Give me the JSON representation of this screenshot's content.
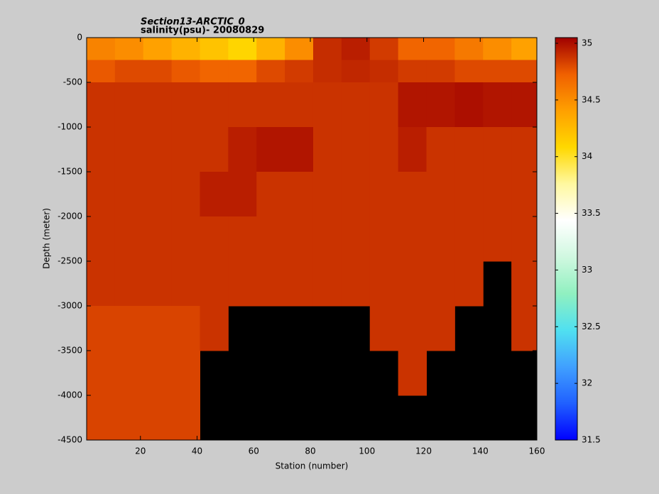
{
  "chart_data": {
    "type": "heatmap",
    "title": "Section13-ARCTIC_0",
    "subtitle": "salinity(psu)- 20080829",
    "x_label": "Station (number)",
    "y_label": "Depth (meter)",
    "x_edges": [
      1,
      11,
      21,
      31,
      41,
      51,
      61,
      71,
      81,
      91,
      101,
      111,
      121,
      131,
      141,
      151,
      160
    ],
    "y_edges": [
      0,
      -250,
      -500,
      -1000,
      -1500,
      -2000,
      -2500,
      -3000,
      -3500,
      -4000,
      -4500
    ],
    "z": [
      [
        34.55,
        34.5,
        34.4,
        34.3,
        34.2,
        34.1,
        34.3,
        34.5,
        34.9,
        34.95,
        34.85,
        34.7,
        34.7,
        34.6,
        34.5,
        34.4
      ],
      [
        34.75,
        34.8,
        34.8,
        34.75,
        34.7,
        34.7,
        34.8,
        34.85,
        34.9,
        34.92,
        34.9,
        34.85,
        34.85,
        34.8,
        34.8,
        34.8
      ],
      [
        34.88,
        34.88,
        34.88,
        34.88,
        34.88,
        34.88,
        34.88,
        34.88,
        34.88,
        34.88,
        34.88,
        34.98,
        34.98,
        35.0,
        34.98,
        34.98
      ],
      [
        34.88,
        34.88,
        34.88,
        34.88,
        34.88,
        34.95,
        34.98,
        34.98,
        34.88,
        34.88,
        34.88,
        34.95,
        34.88,
        34.88,
        34.88,
        34.88
      ],
      [
        34.88,
        34.88,
        34.88,
        34.88,
        34.95,
        34.95,
        34.88,
        34.88,
        34.88,
        34.88,
        34.88,
        34.88,
        34.88,
        34.88,
        34.88,
        34.88
      ],
      [
        34.88,
        34.88,
        34.88,
        34.88,
        34.88,
        34.88,
        34.88,
        34.88,
        34.88,
        34.88,
        34.88,
        34.88,
        34.88,
        34.88,
        34.88,
        34.88
      ],
      [
        34.88,
        34.88,
        34.88,
        34.88,
        34.88,
        34.88,
        34.88,
        34.88,
        34.88,
        34.88,
        34.88,
        34.88,
        34.88,
        34.88,
        null,
        34.88
      ],
      [
        34.82,
        34.82,
        34.82,
        34.82,
        34.88,
        null,
        null,
        null,
        null,
        null,
        34.88,
        34.88,
        34.88,
        null,
        null,
        34.88
      ],
      [
        34.82,
        34.82,
        34.82,
        34.82,
        null,
        null,
        null,
        null,
        null,
        null,
        null,
        34.88,
        null,
        null,
        null,
        null
      ],
      [
        34.82,
        34.82,
        34.82,
        34.82,
        null,
        null,
        null,
        null,
        null,
        null,
        null,
        null,
        null,
        null,
        null,
        null
      ]
    ],
    "xlim": [
      1,
      160
    ],
    "xticks": [
      20,
      40,
      60,
      80,
      100,
      120,
      140,
      160
    ],
    "ylim": [
      -4500,
      0
    ],
    "yticks": [
      0,
      -500,
      -1000,
      -1500,
      -2000,
      -2500,
      -3000,
      -3500,
      -4000,
      -4500
    ],
    "clim": [
      31.5,
      35.05
    ],
    "cticks": [
      31.5,
      32,
      32.5,
      33,
      33.5,
      34,
      34.5,
      35
    ],
    "colormap": [
      "#0000ff",
      "#2060ff",
      "#40a0ff",
      "#50e0f0",
      "#90f0c0",
      "#d0f8e0",
      "#ffffff",
      "#fff8a0",
      "#ffd800",
      "#ffa000",
      "#f06000",
      "#a00000"
    ],
    "missing_color": "#000000",
    "grid": false
  }
}
